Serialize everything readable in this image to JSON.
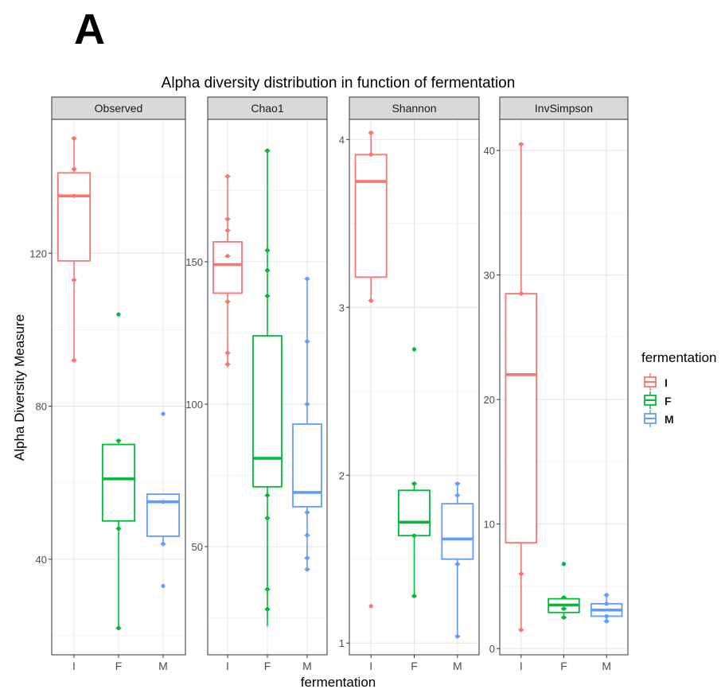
{
  "figure": {
    "panel_letter": "A",
    "title": "Alpha diversity distribution in function of fermentation",
    "xlabel": "fermentation",
    "ylabel": "Alpha Diversity Measure",
    "legend_title": "fermentation",
    "legend_placement": "right"
  },
  "chart_data": {
    "type": "box",
    "grid": true,
    "categories": [
      "I",
      "F",
      "M"
    ],
    "groups": [
      {
        "name": "I",
        "color": "#F8766D"
      },
      {
        "name": "F",
        "color": "#00BA38"
      },
      {
        "name": "M",
        "color": "#619CFF"
      }
    ],
    "facets": [
      {
        "name": "Observed",
        "ylim": [
          15,
          155
        ],
        "yticks": [
          40,
          80,
          120
        ],
        "boxes": [
          {
            "group": "I",
            "q1": 118,
            "median": 135,
            "q3": 141,
            "whisker_low": 92,
            "whisker_high": 150,
            "points": [
              150,
              142,
              135,
              113,
              92
            ],
            "outliers": []
          },
          {
            "group": "F",
            "q1": 50,
            "median": 61,
            "q3": 70,
            "whisker_low": 22,
            "whisker_high": 71,
            "points": [
              71,
              48,
              22
            ],
            "outliers": [
              104
            ]
          },
          {
            "group": "M",
            "q1": 46,
            "median": 55,
            "q3": 57,
            "whisker_low": 44,
            "whisker_high": 57,
            "points": [
              55,
              44
            ],
            "outliers": [
              78,
              33
            ]
          }
        ]
      },
      {
        "name": "Chao1",
        "ylim": [
          12,
          200
        ],
        "yticks": [
          50,
          100,
          150
        ],
        "boxes": [
          {
            "group": "I",
            "q1": 139,
            "median": 149,
            "q3": 157,
            "whisker_low": 113,
            "whisker_high": 180,
            "points": [
              180,
              165,
              161,
              152,
              136,
              118,
              114
            ],
            "outliers": []
          },
          {
            "group": "F",
            "q1": 71,
            "median": 81,
            "q3": 124,
            "whisker_low": 22,
            "whisker_high": 189,
            "points": [
              189,
              154,
              147,
              138,
              68,
              60,
              35,
              28
            ],
            "outliers": []
          },
          {
            "group": "M",
            "q1": 64,
            "median": 69,
            "q3": 93,
            "whisker_low": 42,
            "whisker_high": 144,
            "points": [
              144,
              122,
              100,
              62,
              54,
              46,
              42
            ],
            "outliers": []
          }
        ]
      },
      {
        "name": "Shannon",
        "ylim": [
          0.93,
          4.12
        ],
        "yticks": [
          1,
          2,
          3,
          4
        ],
        "boxes": [
          {
            "group": "I",
            "q1": 3.18,
            "median": 3.75,
            "q3": 3.91,
            "whisker_low": 3.04,
            "whisker_high": 4.04,
            "points": [
              4.04,
              3.91,
              3.04
            ],
            "outliers": [
              1.22
            ]
          },
          {
            "group": "F",
            "q1": 1.64,
            "median": 1.72,
            "q3": 1.91,
            "whisker_low": 1.28,
            "whisker_high": 1.95,
            "points": [
              1.95,
              1.64,
              1.28
            ],
            "outliers": [
              2.75
            ]
          },
          {
            "group": "M",
            "q1": 1.5,
            "median": 1.62,
            "q3": 1.83,
            "whisker_low": 1.04,
            "whisker_high": 1.95,
            "points": [
              1.95,
              1.88,
              1.47,
              1.04
            ],
            "outliers": []
          }
        ]
      },
      {
        "name": "InvSimpson",
        "ylim": [
          -0.5,
          42.5
        ],
        "yticks": [
          0,
          10,
          20,
          30,
          40
        ],
        "boxes": [
          {
            "group": "I",
            "q1": 8.5,
            "median": 22,
            "q3": 28.5,
            "whisker_low": 1.5,
            "whisker_high": 40.5,
            "points": [
              40.5,
              28.5,
              6,
              1.5
            ],
            "outliers": []
          },
          {
            "group": "F",
            "q1": 2.9,
            "median": 3.5,
            "q3": 4.0,
            "whisker_low": 2.4,
            "whisker_high": 4.1,
            "points": [
              4.1,
              3.2,
              2.5
            ],
            "outliers": [
              6.8
            ]
          },
          {
            "group": "M",
            "q1": 2.6,
            "median": 3.1,
            "q3": 3.6,
            "whisker_low": 2.2,
            "whisker_high": 4.3,
            "points": [
              4.3,
              3.6,
              2.6,
              2.2
            ],
            "outliers": []
          }
        ]
      }
    ]
  }
}
